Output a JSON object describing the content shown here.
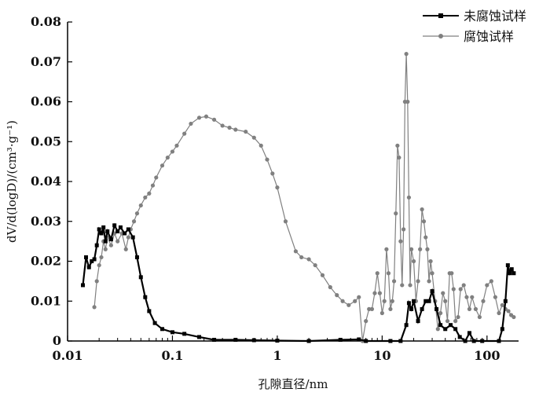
{
  "chart_data": {
    "type": "line",
    "xlabel": "孔隙直径/nm",
    "ylabel": "dV/d(logD)/(cm³·g⁻¹)",
    "xscale": "log",
    "xlim": [
      0.01,
      200
    ],
    "ylim": [
      0,
      0.08
    ],
    "x_ticks": [
      0.01,
      0.1,
      1,
      10,
      100
    ],
    "x_tick_labels": [
      "0.01",
      "0.1",
      "1",
      "10",
      "100"
    ],
    "y_ticks": [
      0,
      0.01,
      0.02,
      0.03,
      0.04,
      0.05,
      0.06,
      0.07,
      0.08
    ],
    "y_tick_labels": [
      "0",
      "0.01",
      "0.02",
      "0.03",
      "0.04",
      "0.05",
      "0.06",
      "0.07",
      "0.08"
    ],
    "grid": false,
    "legend_position": "top-right",
    "series": [
      {
        "name": "未腐蚀试样",
        "color": "#000000",
        "marker": "square",
        "points": [
          [
            0.014,
            0.014
          ],
          [
            0.015,
            0.021
          ],
          [
            0.016,
            0.0185
          ],
          [
            0.017,
            0.02
          ],
          [
            0.018,
            0.0205
          ],
          [
            0.019,
            0.024
          ],
          [
            0.02,
            0.028
          ],
          [
            0.021,
            0.027
          ],
          [
            0.022,
            0.0285
          ],
          [
            0.023,
            0.025
          ],
          [
            0.024,
            0.0275
          ],
          [
            0.026,
            0.0255
          ],
          [
            0.028,
            0.029
          ],
          [
            0.03,
            0.0275
          ],
          [
            0.032,
            0.0285
          ],
          [
            0.035,
            0.027
          ],
          [
            0.038,
            0.028
          ],
          [
            0.042,
            0.026
          ],
          [
            0.046,
            0.021
          ],
          [
            0.05,
            0.016
          ],
          [
            0.055,
            0.011
          ],
          [
            0.06,
            0.0075
          ],
          [
            0.068,
            0.0045
          ],
          [
            0.08,
            0.003
          ],
          [
            0.1,
            0.0022
          ],
          [
            0.13,
            0.0018
          ],
          [
            0.18,
            0.001
          ],
          [
            0.25,
            0.0003
          ],
          [
            0.4,
            0.0003
          ],
          [
            0.6,
            0.0002
          ],
          [
            1.0,
            0.0001
          ],
          [
            2.0,
            0.0
          ],
          [
            4.0,
            0.0003
          ],
          [
            6.0,
            0.0004
          ],
          [
            7.0,
            0.0
          ],
          [
            12.0,
            0.0
          ],
          [
            15.0,
            0.0
          ],
          [
            17.0,
            0.004
          ],
          [
            18.0,
            0.0095
          ],
          [
            19.0,
            0.008
          ],
          [
            20.0,
            0.01
          ],
          [
            22.0,
            0.005
          ],
          [
            24.0,
            0.008
          ],
          [
            26.0,
            0.01
          ],
          [
            28.0,
            0.01
          ],
          [
            30.0,
            0.0125
          ],
          [
            33.0,
            0.008
          ],
          [
            36.0,
            0.004
          ],
          [
            40.0,
            0.003
          ],
          [
            45.0,
            0.004
          ],
          [
            50.0,
            0.003
          ],
          [
            55.0,
            0.001
          ],
          [
            62.0,
            0.0
          ],
          [
            68.0,
            0.002
          ],
          [
            75.0,
            0.0
          ],
          [
            90.0,
            0.0
          ],
          [
            130.0,
            0.0
          ],
          [
            140.0,
            0.003
          ],
          [
            150.0,
            0.01
          ],
          [
            158.0,
            0.019
          ],
          [
            165.0,
            0.017
          ],
          [
            172.0,
            0.018
          ],
          [
            180.0,
            0.017
          ]
        ]
      },
      {
        "name": "腐蚀试样",
        "color": "#808080",
        "marker": "circle",
        "points": [
          [
            0.018,
            0.0085
          ],
          [
            0.019,
            0.015
          ],
          [
            0.02,
            0.019
          ],
          [
            0.021,
            0.021
          ],
          [
            0.022,
            0.025
          ],
          [
            0.023,
            0.023
          ],
          [
            0.024,
            0.026
          ],
          [
            0.026,
            0.024
          ],
          [
            0.028,
            0.027
          ],
          [
            0.03,
            0.025
          ],
          [
            0.033,
            0.027
          ],
          [
            0.036,
            0.023
          ],
          [
            0.038,
            0.026
          ],
          [
            0.04,
            0.028
          ],
          [
            0.043,
            0.03
          ],
          [
            0.046,
            0.032
          ],
          [
            0.05,
            0.034
          ],
          [
            0.055,
            0.036
          ],
          [
            0.06,
            0.037
          ],
          [
            0.065,
            0.039
          ],
          [
            0.07,
            0.041
          ],
          [
            0.08,
            0.044
          ],
          [
            0.09,
            0.046
          ],
          [
            0.1,
            0.0475
          ],
          [
            0.11,
            0.049
          ],
          [
            0.13,
            0.052
          ],
          [
            0.15,
            0.0545
          ],
          [
            0.18,
            0.056
          ],
          [
            0.21,
            0.0563
          ],
          [
            0.25,
            0.0555
          ],
          [
            0.3,
            0.054
          ],
          [
            0.35,
            0.0535
          ],
          [
            0.4,
            0.053
          ],
          [
            0.5,
            0.0525
          ],
          [
            0.6,
            0.051
          ],
          [
            0.7,
            0.049
          ],
          [
            0.8,
            0.0455
          ],
          [
            0.9,
            0.042
          ],
          [
            1.0,
            0.0385
          ],
          [
            1.2,
            0.03
          ],
          [
            1.5,
            0.0225
          ],
          [
            1.7,
            0.021
          ],
          [
            2.0,
            0.0205
          ],
          [
            2.3,
            0.019
          ],
          [
            2.7,
            0.0165
          ],
          [
            3.2,
            0.0135
          ],
          [
            3.7,
            0.0115
          ],
          [
            4.2,
            0.01
          ],
          [
            4.8,
            0.009
          ],
          [
            5.5,
            0.01
          ],
          [
            6.0,
            0.011
          ],
          [
            6.5,
            0.0
          ],
          [
            7.0,
            0.005
          ],
          [
            7.5,
            0.008
          ],
          [
            8.0,
            0.008
          ],
          [
            8.5,
            0.012
          ],
          [
            9.0,
            0.017
          ],
          [
            9.5,
            0.012
          ],
          [
            10.0,
            0.007
          ],
          [
            10.5,
            0.01
          ],
          [
            11.0,
            0.023
          ],
          [
            11.5,
            0.017
          ],
          [
            12.0,
            0.008
          ],
          [
            12.5,
            0.01
          ],
          [
            13.0,
            0.015
          ],
          [
            13.5,
            0.032
          ],
          [
            14.0,
            0.049
          ],
          [
            14.5,
            0.046
          ],
          [
            15.0,
            0.025
          ],
          [
            15.5,
            0.014
          ],
          [
            16.0,
            0.028
          ],
          [
            16.5,
            0.06
          ],
          [
            17.0,
            0.072
          ],
          [
            17.5,
            0.06
          ],
          [
            18.0,
            0.036
          ],
          [
            18.5,
            0.014
          ],
          [
            19.0,
            0.023
          ],
          [
            20.0,
            0.02
          ],
          [
            21.0,
            0.01
          ],
          [
            22.0,
            0.015
          ],
          [
            23.0,
            0.023
          ],
          [
            24.0,
            0.033
          ],
          [
            25.0,
            0.03
          ],
          [
            26.0,
            0.026
          ],
          [
            27.0,
            0.023
          ],
          [
            28.0,
            0.015
          ],
          [
            29.0,
            0.02
          ],
          [
            30.0,
            0.017
          ],
          [
            32.0,
            0.01
          ],
          [
            34.0,
            0.003
          ],
          [
            36.0,
            0.007
          ],
          [
            38.0,
            0.012
          ],
          [
            40.0,
            0.01
          ],
          [
            42.0,
            0.005
          ],
          [
            44.0,
            0.017
          ],
          [
            46.0,
            0.017
          ],
          [
            48.0,
            0.013
          ],
          [
            50.0,
            0.005
          ],
          [
            53.0,
            0.006
          ],
          [
            56.0,
            0.013
          ],
          [
            60.0,
            0.014
          ],
          [
            64.0,
            0.011
          ],
          [
            68.0,
            0.008
          ],
          [
            72.0,
            0.011
          ],
          [
            78.0,
            0.008
          ],
          [
            85.0,
            0.006
          ],
          [
            92.0,
            0.01
          ],
          [
            100.0,
            0.014
          ],
          [
            110.0,
            0.015
          ],
          [
            120.0,
            0.011
          ],
          [
            130.0,
            0.007
          ],
          [
            140.0,
            0.009
          ],
          [
            150.0,
            0.008
          ],
          [
            160.0,
            0.0075
          ],
          [
            170.0,
            0.0065
          ],
          [
            180.0,
            0.006
          ]
        ]
      }
    ]
  }
}
